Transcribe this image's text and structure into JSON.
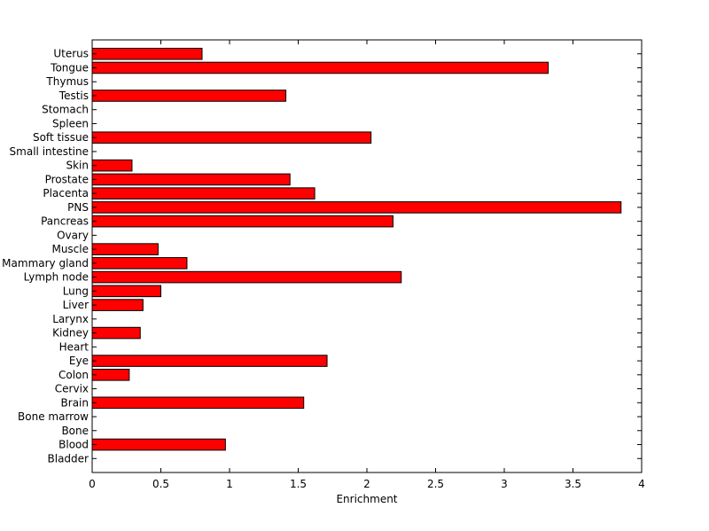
{
  "chart_data": {
    "type": "bar",
    "orientation": "horizontal",
    "title": "",
    "xlabel": "Enrichment",
    "ylabel": "",
    "xlim": [
      0,
      4
    ],
    "xticks": [
      "0",
      "0.5",
      "1",
      "1.5",
      "2",
      "2.5",
      "3",
      "3.5",
      "4"
    ],
    "grid": false,
    "bar_color": "#ff0000",
    "bar_edge_color": "#000000",
    "categories": [
      "Bladder",
      "Blood",
      "Bone",
      "Bone marrow",
      "Brain",
      "Cervix",
      "Colon",
      "Eye",
      "Heart",
      "Kidney",
      "Larynx",
      "Liver",
      "Lung",
      "Lymph node",
      "Mammary gland",
      "Muscle",
      "Ovary",
      "Pancreas",
      "PNS",
      "Placenta",
      "Prostate",
      "Skin",
      "Small intestine",
      "Soft tissue",
      "Spleen",
      "Stomach",
      "Testis",
      "Thymus",
      "Tongue",
      "Uterus"
    ],
    "values": [
      0,
      0.97,
      0,
      0,
      1.54,
      0,
      0.27,
      1.71,
      0,
      0.35,
      0,
      0.37,
      0.5,
      2.25,
      0.69,
      0.48,
      0,
      2.19,
      3.85,
      1.62,
      1.44,
      0.29,
      0,
      2.03,
      0,
      0,
      1.41,
      0,
      3.32,
      0.8
    ]
  }
}
